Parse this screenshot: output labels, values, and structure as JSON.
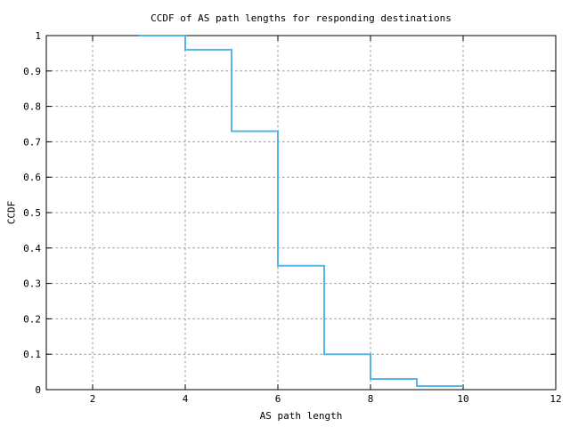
{
  "chart_data": {
    "type": "line",
    "style": "step",
    "title": "CCDF of AS path lengths for responding destinations",
    "xlabel": "AS path length",
    "ylabel": "CCDF",
    "xlim": [
      1,
      12
    ],
    "ylim": [
      0,
      1
    ],
    "grid": "dashed",
    "legend": "none",
    "xticks": [
      {
        "value": 2,
        "label": "2"
      },
      {
        "value": 4,
        "label": "4"
      },
      {
        "value": 6,
        "label": "6"
      },
      {
        "value": 8,
        "label": "8"
      },
      {
        "value": 10,
        "label": "10"
      },
      {
        "value": 12,
        "label": "12"
      }
    ],
    "yticks": [
      {
        "value": 0,
        "label": "0"
      },
      {
        "value": 0.1,
        "label": "0.1"
      },
      {
        "value": 0.2,
        "label": "0.2"
      },
      {
        "value": 0.3,
        "label": "0.3"
      },
      {
        "value": 0.4,
        "label": "0.4"
      },
      {
        "value": 0.5,
        "label": "0.5"
      },
      {
        "value": 0.6,
        "label": "0.6"
      },
      {
        "value": 0.7,
        "label": "0.7"
      },
      {
        "value": 0.8,
        "label": "0.8"
      },
      {
        "value": 0.9,
        "label": "0.9"
      },
      {
        "value": 1,
        "label": "1"
      }
    ],
    "series": [
      {
        "name": "CCDF of AS path lengths",
        "color": "#56b4e9",
        "steps": [
          {
            "x_start": 3,
            "x_end": 4,
            "ccdf": 1.0
          },
          {
            "x_start": 4,
            "x_end": 5,
            "ccdf": 0.96
          },
          {
            "x_start": 5,
            "x_end": 6,
            "ccdf": 0.73
          },
          {
            "x_start": 6,
            "x_end": 7,
            "ccdf": 0.35
          },
          {
            "x_start": 7,
            "x_end": 8,
            "ccdf": 0.1
          },
          {
            "x_start": 8,
            "x_end": 9,
            "ccdf": 0.03
          },
          {
            "x_start": 9,
            "x_end": 10,
            "ccdf": 0.01
          }
        ]
      }
    ]
  },
  "colors": {
    "line": "#56b4e9",
    "grid": "#969696",
    "axis": "#000000",
    "text": "#000000",
    "background": "#ffffff"
  }
}
